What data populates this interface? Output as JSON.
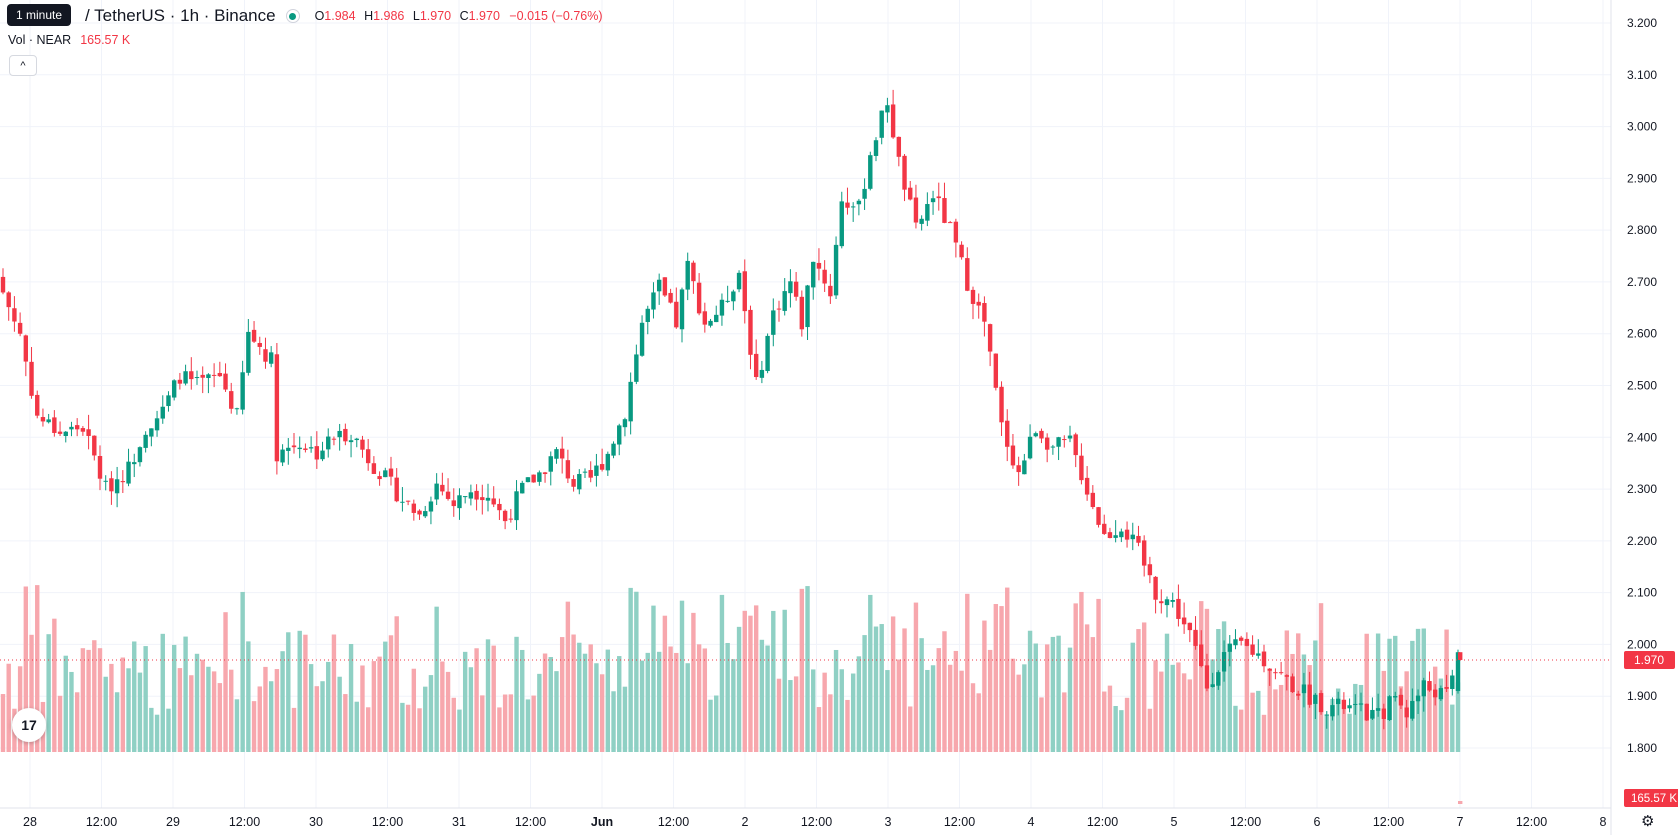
{
  "tooltip": "1 minute",
  "symbol_title": "/ TetherUS · 1h · Binance",
  "ohlc": {
    "o_label": "O",
    "o": "1.984",
    "h_label": "H",
    "h": "1.986",
    "l_label": "L",
    "l": "1.970",
    "c_label": "C",
    "c": "1.970",
    "change": "−0.015 (−0.76%)"
  },
  "volume_legend": {
    "label": "Vol · NEAR",
    "value": "165.57 K"
  },
  "price_badge": "1.970",
  "volume_badge": "165.57 K",
  "logo_text": "17",
  "colors": {
    "up": "#089981",
    "down": "#f23645",
    "up_vol": "#8fd0c4",
    "down_vol": "#f7a7ad",
    "grid": "#f0f3fa"
  },
  "chart_data": {
    "type": "candlestick",
    "title": "NEAR / TetherUS · 1h · Binance",
    "y_axis": {
      "min": 1.75,
      "max": 3.2,
      "ticks": [
        3.2,
        3.1,
        3.0,
        2.9,
        2.8,
        2.7,
        2.6,
        2.5,
        2.4,
        2.3,
        2.2,
        2.1,
        2.0,
        1.9,
        1.8
      ]
    },
    "x_axis": {
      "ticks": [
        "28",
        "12:00",
        "29",
        "12:00",
        "30",
        "12:00",
        "31",
        "12:00",
        "Jun",
        "12:00",
        "2",
        "12:00",
        "3",
        "12:00",
        "4",
        "12:00",
        "5",
        "12:00",
        "6",
        "12:00",
        "7",
        "12:00",
        "8"
      ]
    },
    "last_price": 1.97,
    "close_path": [
      [
        0,
        2.68
      ],
      [
        3,
        2.6
      ],
      [
        6,
        2.44
      ],
      [
        10,
        2.41
      ],
      [
        14,
        2.42
      ],
      [
        18,
        2.3
      ],
      [
        22,
        2.34
      ],
      [
        25,
        2.42
      ],
      [
        28,
        2.45
      ],
      [
        31,
        2.52
      ],
      [
        34,
        2.5
      ],
      [
        38,
        2.52
      ],
      [
        41,
        2.44
      ],
      [
        43,
        2.6
      ],
      [
        47,
        2.55
      ],
      [
        48,
        2.37
      ],
      [
        52,
        2.39
      ],
      [
        55,
        2.37
      ],
      [
        58,
        2.4
      ],
      [
        61,
        2.41
      ],
      [
        64,
        2.36
      ],
      [
        67,
        2.32
      ],
      [
        70,
        2.28
      ],
      [
        73,
        2.25
      ],
      [
        76,
        2.31
      ],
      [
        79,
        2.27
      ],
      [
        82,
        2.3
      ],
      [
        85,
        2.29
      ],
      [
        88,
        2.24
      ],
      [
        91,
        2.3
      ],
      [
        94,
        2.33
      ],
      [
        97,
        2.37
      ],
      [
        100,
        2.31
      ],
      [
        103,
        2.32
      ],
      [
        106,
        2.37
      ],
      [
        109,
        2.45
      ],
      [
        112,
        2.62
      ],
      [
        115,
        2.69
      ],
      [
        118,
        2.62
      ],
      [
        120,
        2.73
      ],
      [
        123,
        2.62
      ],
      [
        126,
        2.65
      ],
      [
        129,
        2.72
      ],
      [
        132,
        2.5
      ],
      [
        135,
        2.64
      ],
      [
        138,
        2.7
      ],
      [
        140,
        2.62
      ],
      [
        142,
        2.75
      ],
      [
        145,
        2.68
      ],
      [
        147,
        2.86
      ],
      [
        150,
        2.84
      ],
      [
        152,
        2.95
      ],
      [
        155,
        3.05
      ],
      [
        157,
        2.93
      ],
      [
        160,
        2.8
      ],
      [
        163,
        2.87
      ],
      [
        166,
        2.8
      ],
      [
        169,
        2.7
      ],
      [
        172,
        2.62
      ],
      [
        175,
        2.42
      ],
      [
        178,
        2.33
      ],
      [
        181,
        2.42
      ],
      [
        184,
        2.38
      ],
      [
        187,
        2.39
      ],
      [
        190,
        2.3
      ],
      [
        193,
        2.21
      ],
      [
        196,
        2.23
      ],
      [
        199,
        2.18
      ],
      [
        202,
        2.1
      ],
      [
        205,
        2.08
      ],
      [
        208,
        2.02
      ],
      [
        211,
        1.92
      ],
      [
        214,
        1.98
      ],
      [
        217,
        2.0
      ],
      [
        220,
        1.98
      ],
      [
        223,
        1.95
      ],
      [
        226,
        1.92
      ],
      [
        229,
        1.9
      ],
      [
        232,
        1.88
      ],
      [
        235,
        1.88
      ],
      [
        238,
        1.87
      ],
      [
        241,
        1.86
      ],
      [
        244,
        1.9
      ],
      [
        246,
        1.87
      ],
      [
        249,
        1.92
      ],
      [
        251,
        1.91
      ],
      [
        253,
        1.9
      ],
      [
        255,
        1.97
      ]
    ],
    "volume_scale_max": 1.0
  }
}
